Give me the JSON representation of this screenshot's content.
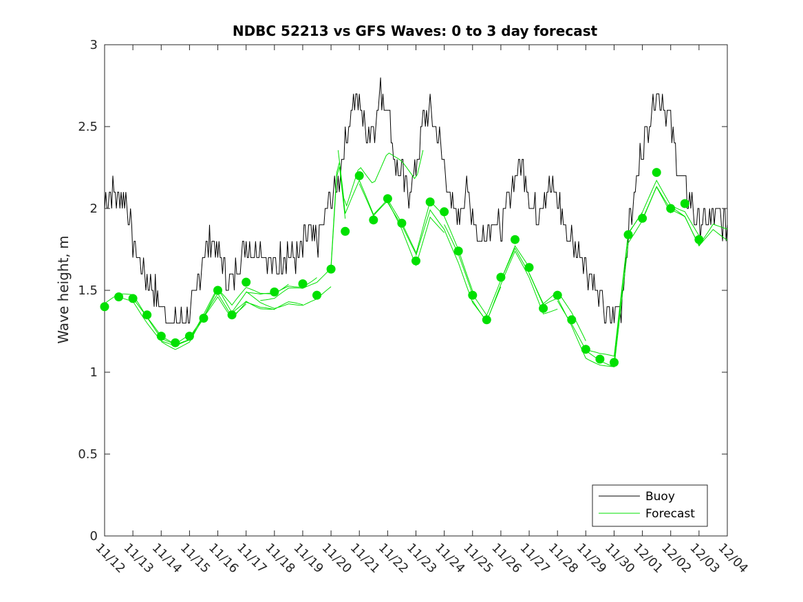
{
  "chart_data": {
    "type": "line",
    "title": "NDBC 52213 vs GFS Waves: 0 to 3 day forecast",
    "xlabel": "",
    "ylabel": "Wave height, m",
    "ylim": [
      0,
      3
    ],
    "yticks": [
      "0",
      "0.5",
      "1",
      "1.5",
      "2",
      "2.5",
      "3"
    ],
    "ytick_values": [
      0,
      0.5,
      1,
      1.5,
      2,
      2.5,
      3
    ],
    "xlim_days": [
      0,
      22
    ],
    "xtick_labels": [
      "11/12",
      "11/13",
      "11/14",
      "11/15",
      "11/16",
      "11/17",
      "11/18",
      "11/19",
      "11/20",
      "11/21",
      "11/22",
      "11/23",
      "11/24",
      "11/25",
      "11/26",
      "11/27",
      "11/28",
      "11/29",
      "11/30",
      "12/01",
      "12/02",
      "12/03",
      "12/04"
    ],
    "legend": {
      "position": "bottom-right",
      "entries": [
        "Buoy",
        "Forecast"
      ]
    },
    "colors": {
      "buoy": "#000000",
      "forecast": "#00e000",
      "axis": "#262626"
    },
    "buoy_anchors": [
      [
        0,
        2.05
      ],
      [
        0.25,
        2.1
      ],
      [
        0.5,
        2.05
      ],
      [
        0.75,
        2.1
      ],
      [
        1.0,
        1.8
      ],
      [
        1.25,
        1.7
      ],
      [
        1.5,
        1.55
      ],
      [
        1.75,
        1.5
      ],
      [
        2.0,
        1.4
      ],
      [
        2.25,
        1.35
      ],
      [
        2.5,
        1.3
      ],
      [
        2.75,
        1.3
      ],
      [
        3.0,
        1.35
      ],
      [
        3.25,
        1.5
      ],
      [
        3.5,
        1.75
      ],
      [
        3.75,
        1.8
      ],
      [
        4.0,
        1.75
      ],
      [
        4.25,
        1.6
      ],
      [
        4.5,
        1.55
      ],
      [
        4.75,
        1.65
      ],
      [
        5.0,
        1.8
      ],
      [
        5.25,
        1.75
      ],
      [
        5.5,
        1.8
      ],
      [
        5.75,
        1.7
      ],
      [
        6.0,
        1.65
      ],
      [
        6.25,
        1.7
      ],
      [
        6.5,
        1.75
      ],
      [
        6.75,
        1.7
      ],
      [
        7.0,
        1.75
      ],
      [
        7.25,
        1.85
      ],
      [
        7.5,
        1.8
      ],
      [
        7.75,
        1.9
      ],
      [
        8.0,
        2.05
      ],
      [
        8.25,
        2.15
      ],
      [
        8.5,
        2.4
      ],
      [
        8.75,
        2.65
      ],
      [
        9.0,
        2.65
      ],
      [
        9.25,
        2.45
      ],
      [
        9.5,
        2.5
      ],
      [
        9.75,
        2.7
      ],
      [
        10.0,
        2.65
      ],
      [
        10.25,
        2.3
      ],
      [
        10.5,
        2.2
      ],
      [
        10.75,
        2.1
      ],
      [
        11.0,
        2.25
      ],
      [
        11.25,
        2.5
      ],
      [
        11.5,
        2.6
      ],
      [
        11.75,
        2.5
      ],
      [
        12.0,
        2.25
      ],
      [
        12.25,
        2.0
      ],
      [
        12.5,
        1.95
      ],
      [
        12.75,
        2.1
      ],
      [
        13.0,
        2.0
      ],
      [
        13.25,
        1.8
      ],
      [
        13.5,
        1.85
      ],
      [
        13.75,
        1.95
      ],
      [
        14.0,
        1.85
      ],
      [
        14.25,
        2.05
      ],
      [
        14.5,
        2.2
      ],
      [
        14.75,
        2.3
      ],
      [
        15.0,
        2.1
      ],
      [
        15.25,
        1.95
      ],
      [
        15.5,
        2.1
      ],
      [
        15.75,
        2.15
      ],
      [
        16.0,
        2.05
      ],
      [
        16.25,
        1.9
      ],
      [
        16.5,
        1.8
      ],
      [
        16.75,
        1.75
      ],
      [
        17.0,
        1.65
      ],
      [
        17.25,
        1.55
      ],
      [
        17.5,
        1.45
      ],
      [
        17.75,
        1.35
      ],
      [
        18.0,
        1.35
      ],
      [
        18.25,
        1.4
      ],
      [
        18.5,
        1.85
      ],
      [
        18.75,
        2.1
      ],
      [
        19.0,
        2.4
      ],
      [
        19.25,
        2.55
      ],
      [
        19.5,
        2.7
      ],
      [
        19.75,
        2.65
      ],
      [
        20.0,
        2.5
      ],
      [
        20.25,
        2.3
      ],
      [
        20.5,
        2.1
      ],
      [
        20.75,
        2.0
      ],
      [
        21.0,
        1.9
      ],
      [
        21.25,
        1.9
      ],
      [
        21.5,
        1.95
      ],
      [
        22.0,
        1.9
      ]
    ],
    "buoy_noise": 0.09,
    "forecast_base": [
      [
        0,
        1.42
      ],
      [
        0.5,
        1.46
      ],
      [
        1.0,
        1.45
      ],
      [
        1.5,
        1.32
      ],
      [
        2.0,
        1.2
      ],
      [
        2.5,
        1.16
      ],
      [
        3.0,
        1.2
      ],
      [
        3.5,
        1.35
      ],
      [
        4.0,
        1.5
      ],
      [
        4.5,
        1.38
      ],
      [
        5.0,
        1.48
      ],
      [
        5.5,
        1.45
      ],
      [
        6.0,
        1.45
      ],
      [
        6.5,
        1.5
      ],
      [
        7.0,
        1.5
      ],
      [
        7.5,
        1.55
      ],
      [
        8.0,
        1.65
      ],
      [
        8.25,
        2.35
      ],
      [
        8.5,
        1.95
      ],
      [
        9.0,
        2.15
      ],
      [
        9.5,
        1.95
      ],
      [
        10.0,
        2.05
      ],
      [
        10.5,
        1.9
      ],
      [
        11.0,
        1.7
      ],
      [
        11.5,
        2.0
      ],
      [
        12.0,
        1.9
      ],
      [
        12.5,
        1.7
      ],
      [
        13.0,
        1.45
      ],
      [
        13.5,
        1.33
      ],
      [
        14.0,
        1.55
      ],
      [
        14.5,
        1.75
      ],
      [
        15.0,
        1.6
      ],
      [
        15.5,
        1.4
      ],
      [
        16.0,
        1.45
      ],
      [
        16.5,
        1.3
      ],
      [
        17.0,
        1.12
      ],
      [
        17.5,
        1.08
      ],
      [
        18.0,
        1.06
      ],
      [
        18.5,
        1.82
      ],
      [
        19.0,
        1.95
      ],
      [
        19.5,
        2.15
      ],
      [
        20.0,
        2.0
      ],
      [
        20.5,
        1.95
      ],
      [
        21.0,
        1.78
      ],
      [
        21.5,
        1.9
      ],
      [
        22.0,
        1.85
      ]
    ],
    "forecast_runs": [
      {
        "start": 0.0,
        "end": 3.0,
        "offset": 0.03
      },
      {
        "start": 0.5,
        "end": 3.5,
        "offset": -0.02
      },
      {
        "start": 1.0,
        "end": 4.0,
        "offset": 0.02
      },
      {
        "start": 2.0,
        "end": 5.0,
        "offset": -0.05
      },
      {
        "start": 3.0,
        "end": 6.0,
        "offset": -0.08
      },
      {
        "start": 3.5,
        "end": 6.5,
        "offset": 0.05
      },
      {
        "start": 4.0,
        "end": 7.0,
        "offset": -0.1
      },
      {
        "start": 4.5,
        "end": 7.5,
        "offset": 0.04
      },
      {
        "start": 5.0,
        "end": 8.0,
        "offset": -0.14
      },
      {
        "start": 5.5,
        "end": 8.5,
        "offset": 0.0
      },
      {
        "start": 8.0,
        "end": 11.0,
        "offset": 0.03
      },
      {
        "start": 8.25,
        "end": 11.25,
        "offset": 0.5
      },
      {
        "start": 9.0,
        "end": 12.0,
        "offset": -0.05
      },
      {
        "start": 10.0,
        "end": 13.0,
        "offset": 0.06
      },
      {
        "start": 11.0,
        "end": 14.0,
        "offset": -0.04
      },
      {
        "start": 12.0,
        "end": 15.0,
        "offset": 0.04
      },
      {
        "start": 13.0,
        "end": 16.0,
        "offset": -0.05
      },
      {
        "start": 14.0,
        "end": 17.0,
        "offset": 0.06
      },
      {
        "start": 15.0,
        "end": 18.0,
        "offset": -0.03
      },
      {
        "start": 16.0,
        "end": 19.0,
        "offset": 0.04
      },
      {
        "start": 17.0,
        "end": 20.0,
        "offset": -0.04
      },
      {
        "start": 18.0,
        "end": 21.0,
        "offset": 0.05
      },
      {
        "start": 19.0,
        "end": 22.0,
        "offset": -0.03
      },
      {
        "start": 20.0,
        "end": 22.0,
        "offset": 0.02
      }
    ],
    "forecast_points": [
      [
        0,
        1.4
      ],
      [
        0.5,
        1.46
      ],
      [
        1.0,
        1.45
      ],
      [
        1.5,
        1.35
      ],
      [
        2.0,
        1.22
      ],
      [
        2.5,
        1.18
      ],
      [
        3.0,
        1.22
      ],
      [
        3.5,
        1.33
      ],
      [
        4.0,
        1.5
      ],
      [
        4.5,
        1.35
      ],
      [
        5.0,
        1.55
      ],
      [
        6.0,
        1.49
      ],
      [
        7.0,
        1.54
      ],
      [
        7.5,
        1.47
      ],
      [
        8.0,
        1.63
      ],
      [
        8.5,
        1.86
      ],
      [
        9.0,
        2.2
      ],
      [
        9.5,
        1.93
      ],
      [
        10.0,
        2.06
      ],
      [
        10.5,
        1.91
      ],
      [
        11.0,
        1.68
      ],
      [
        11.5,
        2.04
      ],
      [
        12.0,
        1.98
      ],
      [
        12.5,
        1.74
      ],
      [
        13.0,
        1.47
      ],
      [
        13.5,
        1.32
      ],
      [
        14.0,
        1.58
      ],
      [
        14.5,
        1.81
      ],
      [
        15.0,
        1.64
      ],
      [
        15.5,
        1.39
      ],
      [
        16.0,
        1.47
      ],
      [
        16.5,
        1.32
      ],
      [
        17.0,
        1.14
      ],
      [
        17.5,
        1.08
      ],
      [
        18.0,
        1.06
      ],
      [
        18.5,
        1.84
      ],
      [
        19.0,
        1.94
      ],
      [
        19.5,
        2.22
      ],
      [
        20.0,
        2.0
      ],
      [
        20.5,
        2.03
      ],
      [
        21.0,
        1.81
      ]
    ]
  }
}
